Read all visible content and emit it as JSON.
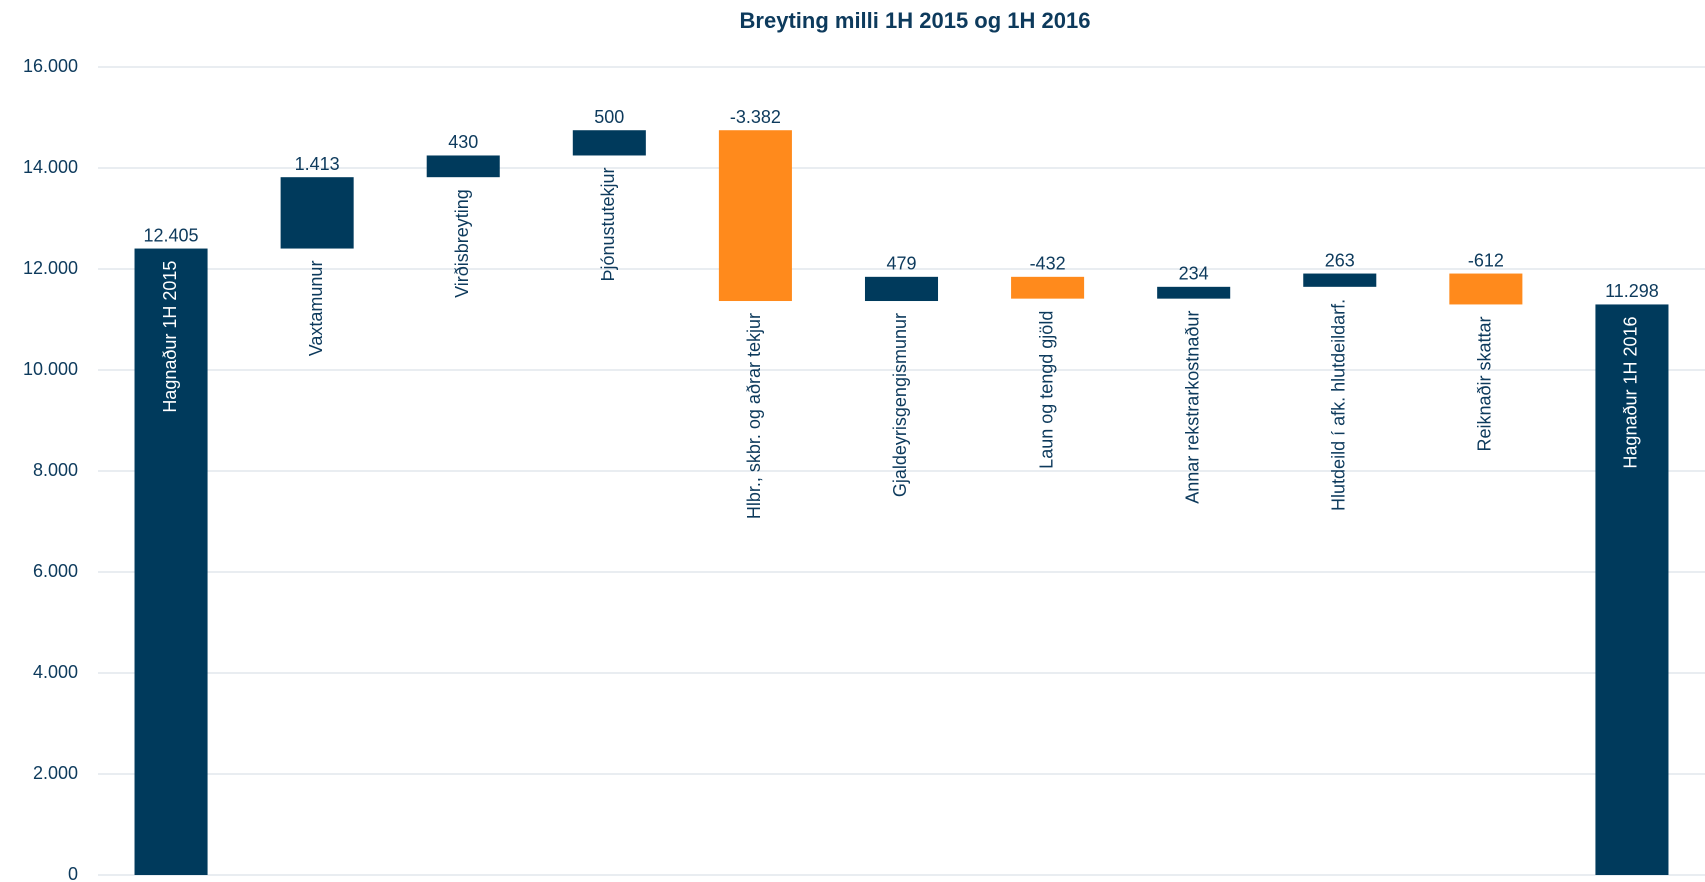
{
  "chart_data": {
    "type": "waterfall",
    "title": "Breyting milli 1H 2015 og 1H 2016",
    "categories": [
      "Hagnaður 1H 2015",
      "Vaxtamunur",
      "Virðisbreyting",
      "Þjónustutekjur",
      "Hlbr., skbr. og aðrar tekjur",
      "Gjaldeyrisgengismunur",
      "Laun og tengd gjöld",
      "Annar rekstrarkostnaður",
      "Hlutdeild í afk. hlutdeildarf.",
      "Reiknaðir skattar",
      "Hagnaður 1H 2016"
    ],
    "values": [
      12405,
      1413,
      430,
      500,
      -3382,
      479,
      -432,
      234,
      263,
      -612,
      11298
    ],
    "value_labels": [
      "12.405",
      "1.413",
      "430",
      "500",
      "-3.382",
      "479",
      "-432",
      "234",
      "263",
      "-612",
      "11.298"
    ],
    "color": "#003a5c",
    "negative_color": "#ff8a1c",
    "ylim": [
      0,
      16000
    ],
    "yticks": [
      0,
      {
        "value": 2000,
        "label": "2.000"
      },
      {
        "value": 4000,
        "label": "4.000"
      },
      {
        "value": 6000,
        "label": "6.000"
      },
      {
        "value": 8000,
        "label": "8.000"
      },
      {
        "value": 10000,
        "label": "10.000"
      },
      {
        "value": 12000,
        "label": "12.000"
      },
      {
        "value": 14000,
        "label": "14.000"
      },
      {
        "value": 16000,
        "label": "16.000"
      }
    ],
    "grid": true
  }
}
